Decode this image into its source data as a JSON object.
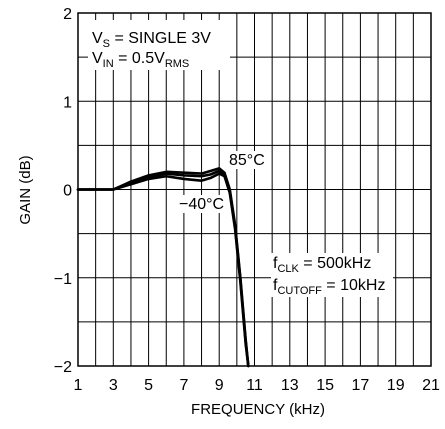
{
  "chart_data": {
    "type": "line",
    "xlabel": "FREQUENCY (kHz)",
    "ylabel": "GAIN (dB)",
    "xlim": [
      1,
      21
    ],
    "ylim": [
      -2,
      2
    ],
    "x_ticks": [
      1,
      3,
      5,
      7,
      9,
      11,
      13,
      15,
      17,
      19,
      21
    ],
    "x_tick_labels": [
      "1",
      "3",
      "5",
      "7",
      "9",
      "11",
      "13",
      "15",
      "17",
      "19",
      "21"
    ],
    "y_ticks": [
      -2,
      -1,
      0,
      1,
      2
    ],
    "y_tick_labels": [
      "−2",
      "−1",
      "0",
      "1",
      "2"
    ],
    "grid": true,
    "series": [
      {
        "name": "85°C",
        "x": [
          1,
          3,
          4,
          5,
          6,
          7,
          8,
          8.5,
          9,
          9.3,
          9.6,
          9.9,
          10.2,
          10.5,
          10.65
        ],
        "y": [
          0,
          0,
          0.09,
          0.16,
          0.2,
          0.19,
          0.18,
          0.21,
          0.24,
          0.19,
          0.0,
          -0.4,
          -1.0,
          -1.7,
          -2.0
        ]
      },
      {
        "name": "",
        "x": [
          1,
          3,
          4,
          5,
          6,
          7,
          8,
          8.5,
          9,
          9.3,
          9.6,
          9.9,
          10.2,
          10.5,
          10.65
        ],
        "y": [
          0,
          0,
          0.08,
          0.14,
          0.18,
          0.16,
          0.15,
          0.17,
          0.21,
          0.17,
          -0.02,
          -0.42,
          -1.02,
          -1.72,
          -2.0
        ]
      },
      {
        "name": "−40°C",
        "x": [
          1,
          3,
          4,
          5,
          6,
          7,
          8,
          8.5,
          9,
          9.3,
          9.6,
          9.9,
          10.2,
          10.5,
          10.65
        ],
        "y": [
          0,
          0,
          0.06,
          0.12,
          0.15,
          0.12,
          0.1,
          0.13,
          0.18,
          0.15,
          -0.04,
          -0.45,
          -1.05,
          -1.75,
          -2.0
        ]
      }
    ],
    "annotations": {
      "vs_main": "V",
      "vs_sub": "S",
      "vs_rest": " = SINGLE 3V",
      "vin_main": "V",
      "vin_sub": "IN",
      "vin_rest": " = 0.5V",
      "vin_sub2": "RMS",
      "fclk_main": "f",
      "fclk_sub": "CLK",
      "fclk_rest": " = 500kHz",
      "fcut_main": "f",
      "fcut_sub": "CUTOFF",
      "fcut_rest": " = 10kHz",
      "label_hot": "85°C",
      "label_cold": "−40°C"
    }
  }
}
